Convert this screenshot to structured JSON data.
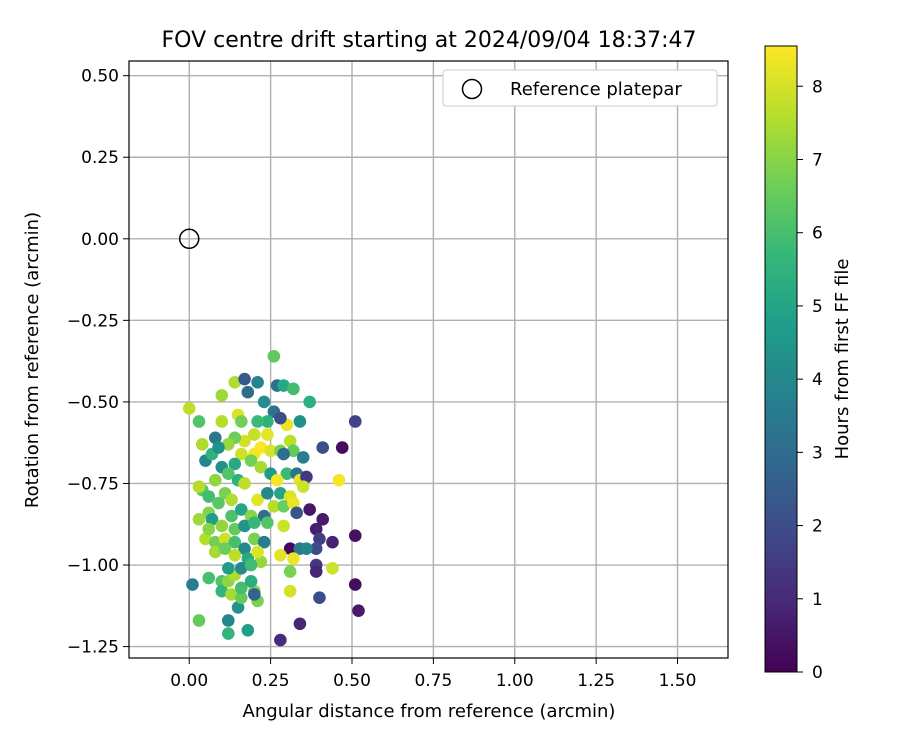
{
  "chart_data": {
    "type": "scatter",
    "title": "FOV centre drift starting at 2024/09/04 18:37:47",
    "xlabel": "Angular distance from reference (arcmin)",
    "ylabel": "Rotation from reference (arcmin)",
    "xlim": [
      -0.185,
      1.655
    ],
    "ylim": [
      -1.285,
      0.545
    ],
    "xticks": [
      0.0,
      0.25,
      0.5,
      0.75,
      1.0,
      1.25,
      1.5
    ],
    "xtick_labels": [
      "0.00",
      "0.25",
      "0.50",
      "0.75",
      "1.00",
      "1.25",
      "1.50"
    ],
    "yticks": [
      0.5,
      0.25,
      0.0,
      -0.25,
      -0.5,
      -0.75,
      -1.0,
      -1.25
    ],
    "ytick_labels": [
      "0.50",
      "0.25",
      "0.00",
      "−0.25",
      "−0.50",
      "−0.75",
      "−1.00",
      "−1.25"
    ],
    "grid": true,
    "legend": {
      "placement": "upper right",
      "entries": [
        "Reference platepar"
      ]
    },
    "reference_point": {
      "x": 0.0,
      "y": 0.0
    },
    "colorbar": {
      "label": "Hours from first FF file",
      "cmap": "viridis",
      "range": [
        0,
        8.55
      ],
      "ticks": [
        0,
        1,
        2,
        3,
        4,
        5,
        6,
        7,
        8
      ],
      "tick_labels": [
        "0",
        "1",
        "2",
        "3",
        "4",
        "5",
        "6",
        "7",
        "8"
      ]
    },
    "points": [
      [
        0.51,
        -0.56,
        1.7
      ],
      [
        0.47,
        -0.64,
        0.3
      ],
      [
        0.41,
        -0.64,
        2.1
      ],
      [
        0.46,
        -0.74,
        8.4
      ],
      [
        0.37,
        -0.83,
        0.5
      ],
      [
        0.41,
        -0.86,
        0.6
      ],
      [
        0.39,
        -0.89,
        0.7
      ],
      [
        0.4,
        -0.92,
        1.6
      ],
      [
        0.39,
        -0.95,
        1.9
      ],
      [
        0.44,
        -0.93,
        0.8
      ],
      [
        0.51,
        -0.91,
        0.4
      ],
      [
        0.39,
        -1.0,
        1.4
      ],
      [
        0.39,
        -1.02,
        0.9
      ],
      [
        0.44,
        -1.01,
        7.9
      ],
      [
        0.51,
        -1.06,
        0.3
      ],
      [
        0.4,
        -1.1,
        2.0
      ],
      [
        0.52,
        -1.14,
        0.6
      ],
      [
        0.34,
        -1.18,
        0.9
      ],
      [
        0.28,
        -1.23,
        1.1
      ],
      [
        0.31,
        -0.95,
        0.2
      ],
      [
        0.34,
        -0.95,
        3.4
      ],
      [
        0.36,
        -0.95,
        3.9
      ],
      [
        0.28,
        -0.97,
        8.2
      ],
      [
        0.32,
        -0.98,
        8.3
      ],
      [
        0.31,
        -1.02,
        6.8
      ],
      [
        0.31,
        -1.08,
        8.0
      ],
      [
        0.22,
        -0.99,
        7.2
      ],
      [
        0.2,
        -1.08,
        7.0
      ],
      [
        0.21,
        -1.11,
        6.8
      ],
      [
        0.15,
        -1.13,
        4.4
      ],
      [
        0.12,
        -1.21,
        5.6
      ],
      [
        0.18,
        -1.2,
        4.8
      ],
      [
        0.12,
        -1.17,
        3.9
      ],
      [
        0.03,
        -1.17,
        6.5
      ],
      [
        0.01,
        -1.06,
        3.6
      ],
      [
        0.06,
        -1.04,
        6.0
      ],
      [
        0.1,
        -1.05,
        6.2
      ],
      [
        0.1,
        -1.08,
        5.6
      ],
      [
        0.12,
        -1.05,
        7.1
      ],
      [
        0.13,
        -1.09,
        7.4
      ],
      [
        0.16,
        -1.1,
        6.5
      ],
      [
        0.16,
        -1.07,
        6.0
      ],
      [
        0.19,
        -1.05,
        5.3
      ],
      [
        0.2,
        -1.09,
        2.7
      ],
      [
        0.14,
        -1.03,
        7.5
      ],
      [
        0.26,
        -0.36,
        6.4
      ],
      [
        0.14,
        -0.44,
        7.5
      ],
      [
        0.17,
        -0.43,
        2.4
      ],
      [
        0.21,
        -0.44,
        3.8
      ],
      [
        0.18,
        -0.47,
        3.0
      ],
      [
        0.27,
        -0.45,
        3.1
      ],
      [
        0.29,
        -0.45,
        5.1
      ],
      [
        0.32,
        -0.46,
        5.9
      ],
      [
        0.37,
        -0.5,
        5.4
      ],
      [
        0.0,
        -0.52,
        7.7
      ],
      [
        0.03,
        -0.56,
        6.2
      ],
      [
        0.1,
        -0.48,
        7.3
      ],
      [
        0.1,
        -0.56,
        7.6
      ],
      [
        0.15,
        -0.54,
        8.1
      ],
      [
        0.16,
        -0.56,
        6.7
      ],
      [
        0.23,
        -0.5,
        4.2
      ],
      [
        0.26,
        -0.53,
        3.2
      ],
      [
        0.24,
        -0.56,
        5.5
      ],
      [
        0.21,
        -0.56,
        5.8
      ],
      [
        0.3,
        -0.57,
        8.3
      ],
      [
        0.34,
        -0.56,
        4.3
      ],
      [
        0.28,
        -0.55,
        2.1
      ],
      [
        0.2,
        -0.6,
        7.8
      ],
      [
        0.24,
        -0.6,
        8.2
      ],
      [
        0.17,
        -0.62,
        8.0
      ],
      [
        0.14,
        -0.61,
        6.6
      ],
      [
        0.12,
        -0.63,
        7.2
      ],
      [
        0.04,
        -0.63,
        7.5
      ],
      [
        0.08,
        -0.61,
        3.4
      ],
      [
        0.22,
        -0.64,
        8.5
      ],
      [
        0.2,
        -0.66,
        8.4
      ],
      [
        0.25,
        -0.65,
        8.1
      ],
      [
        0.28,
        -0.65,
        6.8
      ],
      [
        0.31,
        -0.62,
        7.7
      ],
      [
        0.32,
        -0.65,
        6.5
      ],
      [
        0.29,
        -0.66,
        3.1
      ],
      [
        0.35,
        -0.67,
        3.6
      ],
      [
        0.16,
        -0.66,
        7.9
      ],
      [
        0.05,
        -0.68,
        3.9
      ],
      [
        0.1,
        -0.7,
        4.2
      ],
      [
        0.14,
        -0.69,
        5.1
      ],
      [
        0.19,
        -0.68,
        6.7
      ],
      [
        0.22,
        -0.7,
        7.4
      ],
      [
        0.25,
        -0.72,
        4.6
      ],
      [
        0.3,
        -0.72,
        5.8
      ],
      [
        0.33,
        -0.72,
        3.2
      ],
      [
        0.27,
        -0.74,
        8.4
      ],
      [
        0.34,
        -0.74,
        8.2
      ],
      [
        0.36,
        -0.73,
        1.4
      ],
      [
        0.12,
        -0.72,
        6.2
      ],
      [
        0.08,
        -0.74,
        7.1
      ],
      [
        0.15,
        -0.74,
        5.5
      ],
      [
        0.04,
        -0.77,
        6.3
      ],
      [
        0.03,
        -0.76,
        7.6
      ],
      [
        0.06,
        -0.79,
        5.9
      ],
      [
        0.11,
        -0.78,
        6.8
      ],
      [
        0.13,
        -0.8,
        7.5
      ],
      [
        0.17,
        -0.75,
        7.7
      ],
      [
        0.21,
        -0.8,
        8.2
      ],
      [
        0.24,
        -0.78,
        4.0
      ],
      [
        0.28,
        -0.78,
        5.0
      ],
      [
        0.31,
        -0.79,
        8.1
      ],
      [
        0.35,
        -0.76,
        7.9
      ],
      [
        0.09,
        -0.81,
        6.3
      ],
      [
        0.06,
        -0.84,
        6.9
      ],
      [
        0.03,
        -0.86,
        7.3
      ],
      [
        0.07,
        -0.86,
        4.8
      ],
      [
        0.13,
        -0.85,
        6.1
      ],
      [
        0.16,
        -0.83,
        5.0
      ],
      [
        0.19,
        -0.85,
        7.0
      ],
      [
        0.23,
        -0.85,
        3.1
      ],
      [
        0.26,
        -0.82,
        7.6
      ],
      [
        0.29,
        -0.82,
        6.6
      ],
      [
        0.32,
        -0.81,
        8.3
      ],
      [
        0.33,
        -0.84,
        2.2
      ],
      [
        0.1,
        -0.88,
        7.1
      ],
      [
        0.14,
        -0.89,
        6.5
      ],
      [
        0.17,
        -0.88,
        4.4
      ],
      [
        0.2,
        -0.87,
        5.7
      ],
      [
        0.24,
        -0.87,
        6.2
      ],
      [
        0.29,
        -0.88,
        7.9
      ],
      [
        0.05,
        -0.92,
        7.6
      ],
      [
        0.08,
        -0.93,
        6.7
      ],
      [
        0.11,
        -0.92,
        7.9
      ],
      [
        0.14,
        -0.93,
        6.0
      ],
      [
        0.17,
        -0.95,
        4.1
      ],
      [
        0.2,
        -0.92,
        6.8
      ],
      [
        0.23,
        -0.93,
        3.6
      ],
      [
        0.08,
        -0.96,
        7.4
      ],
      [
        0.11,
        -0.95,
        6.6
      ],
      [
        0.14,
        -0.97,
        7.7
      ],
      [
        0.18,
        -0.98,
        5.2
      ],
      [
        0.21,
        -0.96,
        8.1
      ],
      [
        0.12,
        -1.01,
        4.7
      ],
      [
        0.16,
        -1.01,
        4.0
      ],
      [
        0.19,
        -1.0,
        5.9
      ],
      [
        0.06,
        -0.89,
        7.0
      ],
      [
        0.07,
        -0.66,
        5.5
      ],
      [
        0.09,
        -0.64,
        4.3
      ]
    ]
  }
}
